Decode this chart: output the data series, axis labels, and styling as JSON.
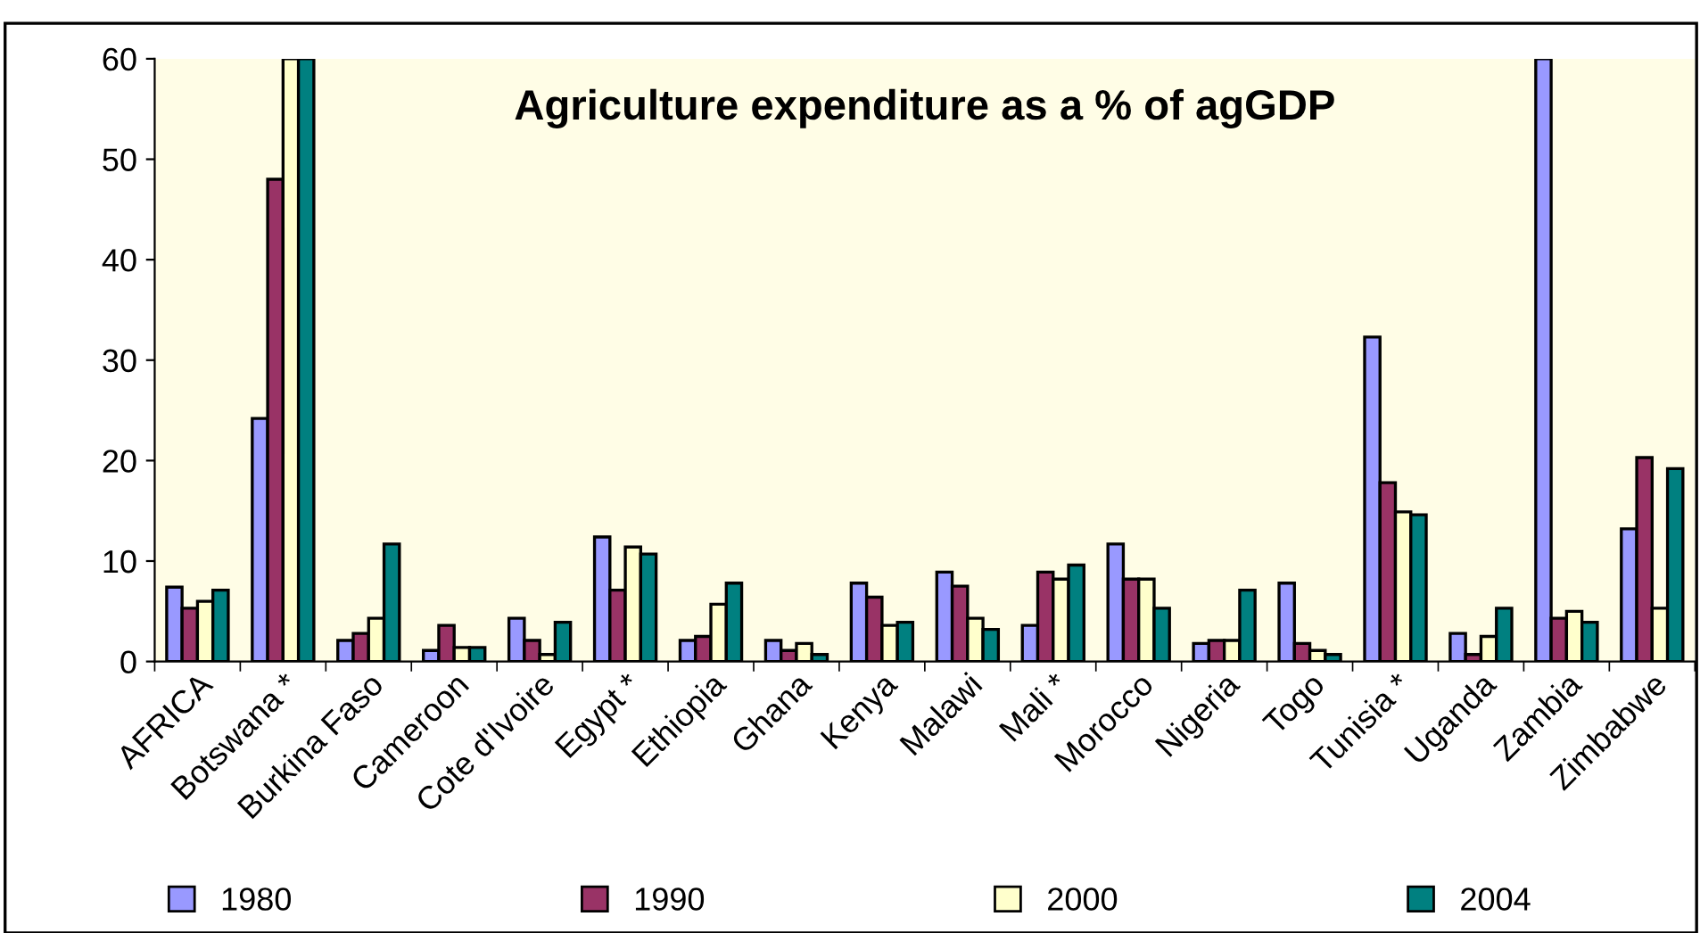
{
  "chart_data": {
    "type": "bar",
    "title": "Agriculture expenditure as a % of agGDP",
    "categories": [
      "AFRICA",
      "Botswana *",
      "Burkina Faso",
      "Cameroon",
      "Cote d'Ivoire",
      "Egypt *",
      "Ethiopia",
      "Ghana",
      "Kenya",
      "Malawi",
      "Mali *",
      "Morocco",
      "Nigeria",
      "Togo",
      "Tunisia *",
      "Uganda",
      "Zambia",
      "Zimbabwe"
    ],
    "series": [
      {
        "name": "1980",
        "color": "#9999ff",
        "values": [
          7.4,
          24.2,
          2.1,
          1.1,
          4.3,
          12.4,
          2.1,
          2.1,
          7.8,
          8.9,
          3.6,
          11.7,
          1.8,
          7.8,
          32.3,
          2.8,
          60,
          13.2
        ]
      },
      {
        "name": "1990",
        "color": "#993366",
        "values": [
          5.3,
          48.0,
          2.8,
          3.6,
          2.1,
          7.1,
          2.5,
          1.1,
          6.4,
          7.5,
          8.9,
          8.2,
          2.1,
          1.8,
          17.8,
          0.7,
          4.3,
          20.3
        ]
      },
      {
        "name": "2000",
        "color": "#ffffcc",
        "values": [
          6.0,
          60,
          4.3,
          1.4,
          0.7,
          11.4,
          5.7,
          1.8,
          3.6,
          4.3,
          8.2,
          8.2,
          2.1,
          1.1,
          14.9,
          2.5,
          5.0,
          5.3
        ]
      },
      {
        "name": "2004",
        "color": "#008080",
        "values": [
          7.1,
          60,
          11.7,
          1.4,
          3.9,
          10.7,
          7.8,
          0.7,
          3.9,
          3.2,
          9.6,
          5.3,
          7.1,
          0.7,
          14.6,
          5.3,
          3.9,
          19.2
        ]
      }
    ],
    "ylim": [
      0,
      60
    ],
    "yticks": [
      0,
      10,
      20,
      30,
      40,
      50,
      60
    ],
    "grid": false,
    "legend": "bottom"
  }
}
